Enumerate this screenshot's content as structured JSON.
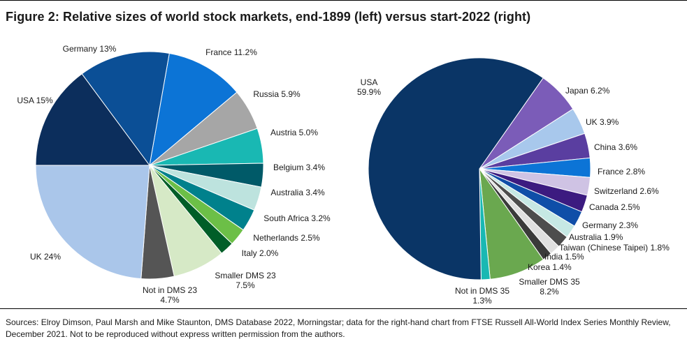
{
  "title": "Figure 2: Relative sizes of world stock markets, end-1899 (left) versus start-2022 (right)",
  "source": "Sources: Elroy Dimson, Paul Marsh and Mike Staunton, DMS Database 2022, Morningstar; data for the right-hand chart from FTSE Russell All-World Index Series Monthly Review, December 2021. Not to be reproduced without express written permission from the authors.",
  "colors": {
    "navy": "#0c2e5c",
    "mid_blue": "#0b4f96",
    "bright_blue": "#0c74d6",
    "grey": "#a6a6a6",
    "teal": "#19b8b3",
    "dark_teal": "#005a68",
    "light_teal": "#bde3de",
    "teal2": "#00818c",
    "green": "#6cbf47",
    "dark_green": "#005e28",
    "pale_green": "#d6e9c6",
    "dark_grey": "#555555",
    "light_blue": "#aac6ea",
    "deep_navy": "#0a3566",
    "purple": "#7b5cb8",
    "sky": "#a8c8ec",
    "violet": "#5a3ea0",
    "lavender": "#cfc3e4",
    "indigo": "#3c1b80",
    "royal": "#0f4ea8",
    "aqua_pale": "#c6e8e4",
    "slate": "#4d4d4d",
    "pale_grey": "#e0e0e0",
    "near_black": "#3a3a3a",
    "leaf": "#6aa84f",
    "cyan": "#19b8b3"
  },
  "chart_data": [
    {
      "type": "pie",
      "title": "end-1899",
      "slices": [
        {
          "name": "France",
          "value": 11.2,
          "label": "France 11.2%"
        },
        {
          "name": "Russia",
          "value": 5.9,
          "label": "Russia 5.9%"
        },
        {
          "name": "Austria",
          "value": 5.0,
          "label": "Austria 5.0%"
        },
        {
          "name": "Belgium",
          "value": 3.4,
          "label": "Belgium 3.4%"
        },
        {
          "name": "Australia",
          "value": 3.4,
          "label": "Australia 3.4%"
        },
        {
          "name": "South Africa",
          "value": 3.2,
          "label": "South Africa 3.2%"
        },
        {
          "name": "Netherlands",
          "value": 2.5,
          "label": "Netherlands 2.5%"
        },
        {
          "name": "Italy",
          "value": 2.0,
          "label": "Italy 2.0%"
        },
        {
          "name": "Smaller DMS 23",
          "value": 7.5,
          "label": "Smaller DMS 23",
          "label2": "7.5%"
        },
        {
          "name": "Not in DMS 23",
          "value": 4.7,
          "label": "Not in DMS 23",
          "label2": "4.7%"
        },
        {
          "name": "UK",
          "value": 24,
          "label": "UK 24%"
        },
        {
          "name": "USA",
          "value": 15,
          "label": "USA 15%"
        },
        {
          "name": "Germany",
          "value": 13,
          "label": "Germany 13%"
        }
      ]
    },
    {
      "type": "pie",
      "title": "start-2022",
      "slices": [
        {
          "name": "Japan",
          "value": 6.2,
          "label": "Japan 6.2%"
        },
        {
          "name": "UK",
          "value": 3.9,
          "label": "UK 3.9%"
        },
        {
          "name": "China",
          "value": 3.6,
          "label": "China 3.6%"
        },
        {
          "name": "France",
          "value": 2.8,
          "label": "France 2.8%"
        },
        {
          "name": "Switzerland",
          "value": 2.6,
          "label": "Switzerland 2.6%"
        },
        {
          "name": "Canada",
          "value": 2.5,
          "label": "Canada 2.5%"
        },
        {
          "name": "Germany",
          "value": 2.3,
          "label": "Germany 2.3%"
        },
        {
          "name": "Australia",
          "value": 1.9,
          "label": "Australia 1.9%"
        },
        {
          "name": "Taiwan (Chinese Taipei)",
          "value": 1.8,
          "label": "Taiwan (Chinese Taipei) 1.8%"
        },
        {
          "name": "India",
          "value": 1.5,
          "label": "India 1.5%"
        },
        {
          "name": "Korea",
          "value": 1.4,
          "label": "Korea 1.4%"
        },
        {
          "name": "Smaller DMS 35",
          "value": 8.2,
          "label": "Smaller DMS 35",
          "label2": "8.2%"
        },
        {
          "name": "Not in DMS 35",
          "value": 1.3,
          "label": "Not in DMS 35",
          "label2": "1.3%"
        },
        {
          "name": "USA",
          "value": 59.9,
          "label": "USA",
          "label2": "59.9%"
        }
      ]
    }
  ]
}
